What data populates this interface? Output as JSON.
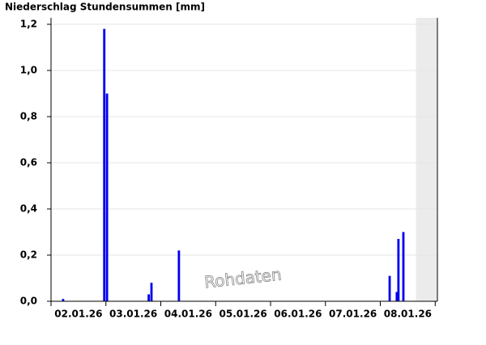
{
  "chart_data": {
    "type": "bar",
    "title": "Niederschlag Stundensummen [mm]",
    "watermark": "Rohdaten",
    "x": [
      2.22,
      2.97,
      3.02,
      3.78,
      3.83,
      4.33,
      8.17,
      8.3,
      8.33,
      8.42
    ],
    "values": [
      0.01,
      1.18,
      0.9,
      0.03,
      0.08,
      0.22,
      0.11,
      0.04,
      0.27,
      0.3
    ],
    "bar_width": 0.0417,
    "color": "#0000ee",
    "xlim": [
      2.0,
      9.04
    ],
    "xticks": [
      {
        "value": 2.5,
        "label": "02.01.26"
      },
      {
        "value": 3.5,
        "label": "03.01.26"
      },
      {
        "value": 4.5,
        "label": "04.01.26"
      },
      {
        "value": 5.5,
        "label": "05.01.26"
      },
      {
        "value": 6.5,
        "label": "06.01.26"
      },
      {
        "value": 7.5,
        "label": "07.01.26"
      },
      {
        "value": 8.5,
        "label": "08.01.26"
      }
    ],
    "ylim": [
      0,
      1.2
    ],
    "yticks": [
      {
        "value": 0,
        "label": "0,0"
      },
      {
        "value": 0.2,
        "label": "0,2"
      },
      {
        "value": 0.4,
        "label": "0,4"
      },
      {
        "value": 0.6,
        "label": "0,6"
      },
      {
        "value": 0.8,
        "label": "0,8"
      },
      {
        "value": 1.0,
        "label": "1,0"
      },
      {
        "value": 1.2,
        "label": "1,2"
      }
    ],
    "shaded_region": [
      8.65,
      9.04
    ],
    "grid": true
  }
}
